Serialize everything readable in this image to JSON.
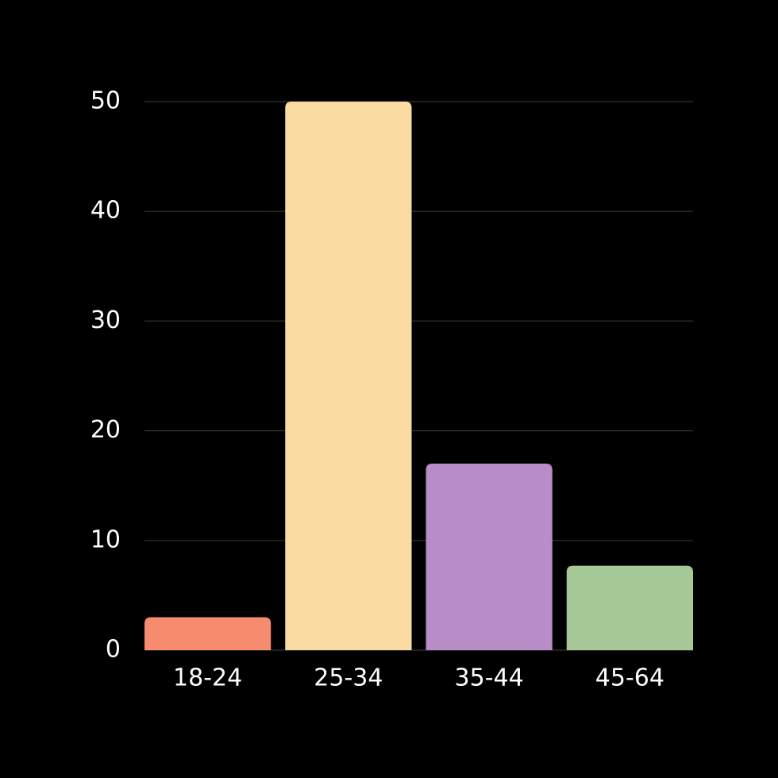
{
  "chart_data": {
    "type": "bar",
    "categories": [
      "18-24",
      "25-34",
      "35-44",
      "45-64"
    ],
    "values": [
      3,
      50,
      17,
      7.7
    ],
    "colors": [
      "#f68b6d",
      "#f9dba2",
      "#b78cc7",
      "#a6c897"
    ],
    "ylim": [
      0,
      50
    ],
    "yticks": [
      0,
      10,
      20,
      30,
      40,
      50
    ],
    "grid": true
  }
}
